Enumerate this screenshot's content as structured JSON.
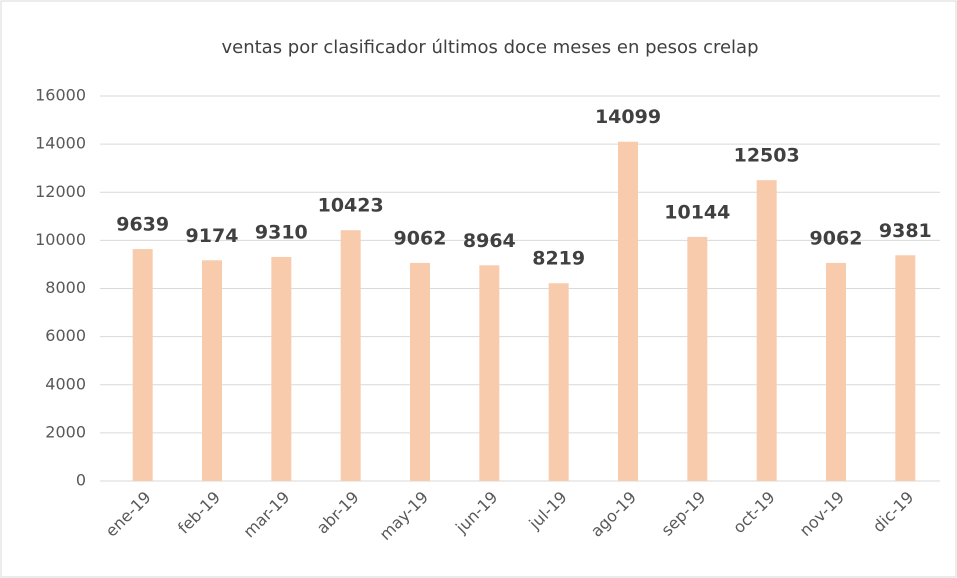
{
  "chart_data": {
    "type": "bar",
    "title": "ventas por clasificador últimos doce meses en pesos crelap",
    "categories": [
      "ene-19",
      "feb-19",
      "mar-19",
      "abr-19",
      "may-19",
      "jun-19",
      "jul-19",
      "ago-19",
      "sep-19",
      "oct-19",
      "nov-19",
      "dic-19"
    ],
    "values": [
      9639,
      9174,
      9310,
      10423,
      9062,
      8964,
      8219,
      14099,
      10144,
      12503,
      9062,
      9381
    ],
    "color": "#f8cbad",
    "ylim": [
      0,
      16000
    ],
    "yticks": [
      0,
      2000,
      4000,
      6000,
      8000,
      10000,
      12000,
      14000,
      16000
    ],
    "grid": true
  }
}
